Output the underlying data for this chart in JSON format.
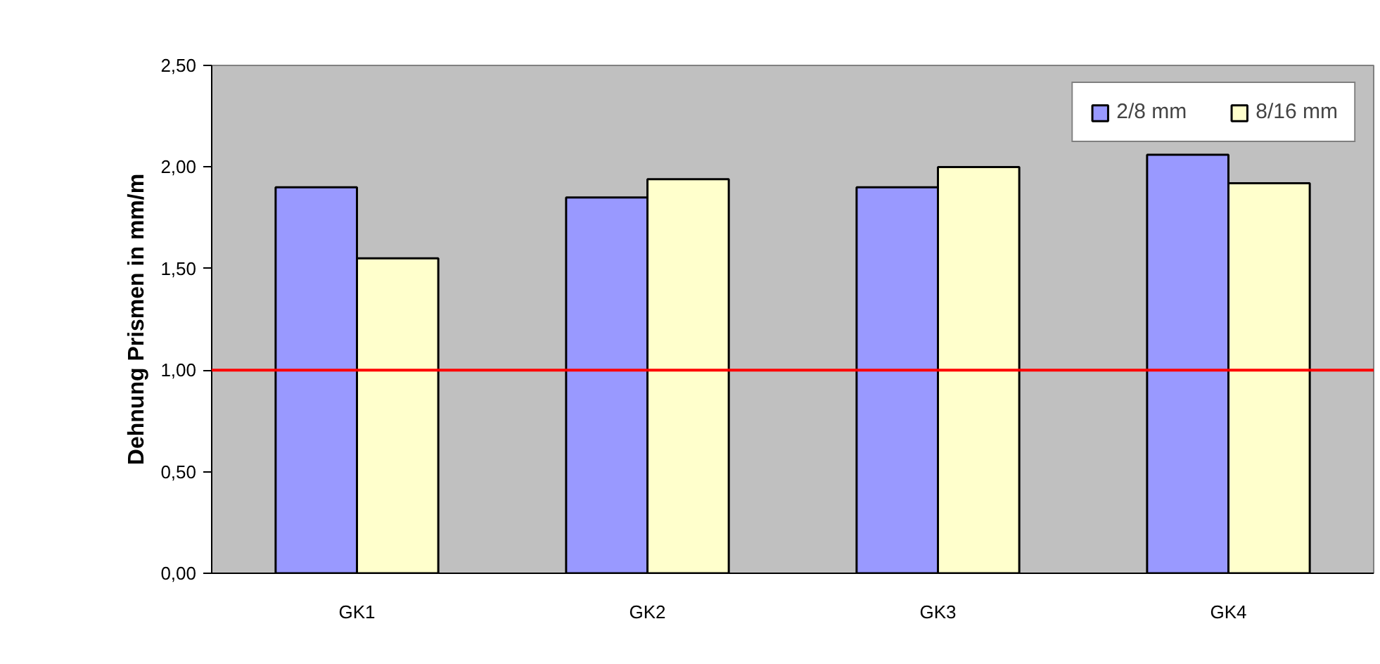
{
  "chart_data": {
    "type": "bar",
    "ylabel": "Dehnung Prismen in mm/m",
    "categories": [
      "GK1",
      "GK2",
      "GK3",
      "GK4"
    ],
    "series": [
      {
        "name": "2/8 mm",
        "color": "#9999ff",
        "values": [
          1.9,
          1.85,
          1.9,
          2.06
        ]
      },
      {
        "name": "8/16 mm",
        "color": "#ffffcc",
        "values": [
          1.55,
          1.94,
          2.0,
          1.92
        ]
      }
    ],
    "ylim": [
      0,
      2.5
    ],
    "yticks": [
      {
        "value": 0,
        "label": "0,00"
      },
      {
        "value": 0.5,
        "label": "0,50"
      },
      {
        "value": 1,
        "label": "1,00"
      },
      {
        "value": 1.5,
        "label": "1,50"
      },
      {
        "value": 2,
        "label": "2,00"
      },
      {
        "value": 2.5,
        "label": "2,50"
      }
    ],
    "ref_lines": [
      {
        "axis": "y",
        "value": 1,
        "color": "#ff0000"
      }
    ],
    "grid": false,
    "legend": "top right"
  }
}
